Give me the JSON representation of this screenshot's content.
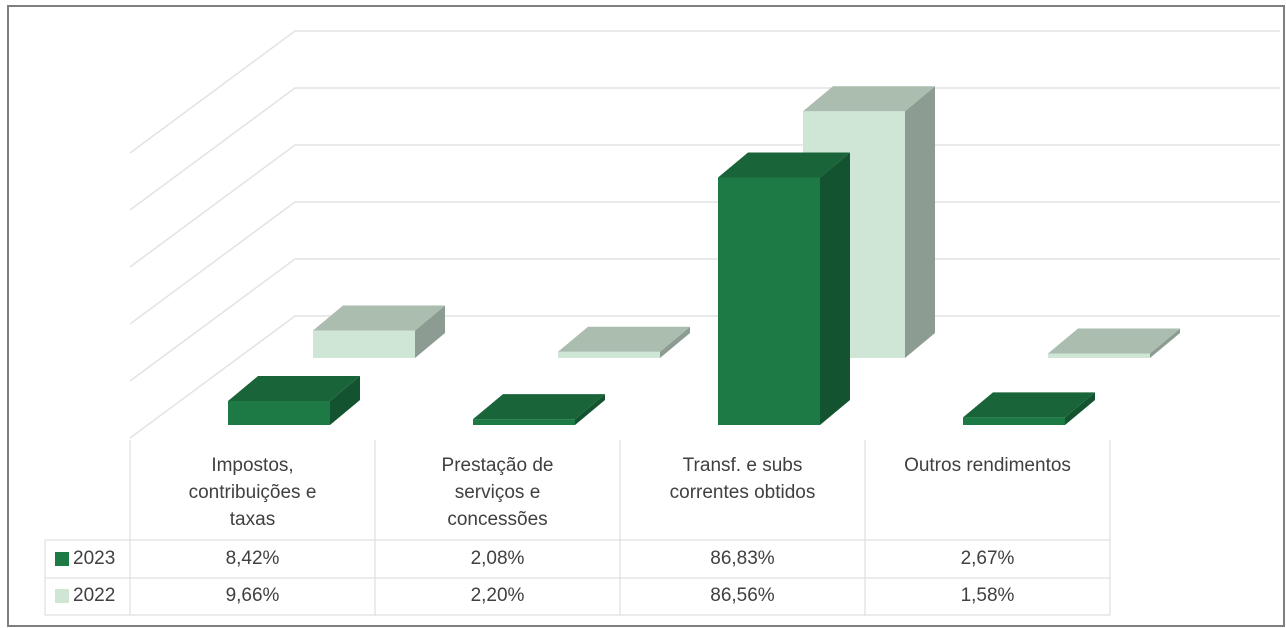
{
  "chart_data": {
    "type": "bar3d",
    "categories": [
      "Impostos, contribuições e taxas",
      "Prestação de serviços e concessões",
      "Transf. e subs correntes obtidos",
      "Outros rendimentos"
    ],
    "series": [
      {
        "name": "2023",
        "color": "#1e7a45",
        "values": [
          8.42,
          2.08,
          86.83,
          2.67
        ],
        "value_labels": [
          "8,42%",
          "2,08%",
          "86,83%",
          "2,67%"
        ]
      },
      {
        "name": "2022",
        "color": "#cfe6d6",
        "values": [
          9.66,
          2.2,
          86.56,
          1.58
        ],
        "value_labels": [
          "9,66%",
          "2,20%",
          "86,56%",
          "1,58%"
        ]
      }
    ],
    "ylim": [
      0,
      100
    ],
    "yticks": [
      0,
      20,
      40,
      60,
      80,
      100
    ],
    "grid": true
  }
}
